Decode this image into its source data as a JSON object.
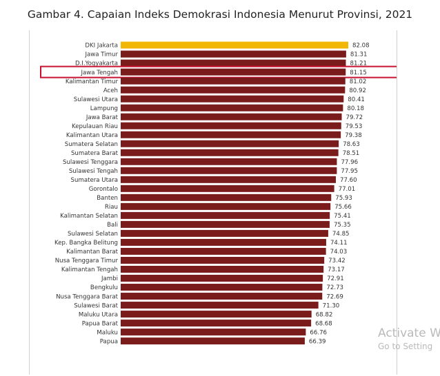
{
  "chart_data": {
    "type": "bar",
    "orientation": "horizontal",
    "title": "Gambar 4. Capaian Indeks Demokrasi Indonesia Menurut Provinsi, 2021",
    "xlabel": "",
    "ylabel": "",
    "grid": false,
    "legend": "none",
    "xlim": [
      0,
      82.08
    ],
    "categories": [
      "DKI Jakarta",
      "Jawa Timur",
      "D.I.Yogyakarta",
      "Jawa Tengah",
      "Kalimantan Timur",
      "Aceh",
      "Sulawesi Utara",
      "Lampung",
      "Jawa Barat",
      "Kepulauan Riau",
      "Kalimantan Utara",
      "Sumatera Selatan",
      "Sumatera Barat",
      "Sulawesi Tenggara",
      "Sulawesi Tengah",
      "Sumatera Utara",
      "Gorontalo",
      "Banten",
      "Riau",
      "Kalimantan Selatan",
      "Bali",
      "Sulawesi Selatan",
      "Kep. Bangka Belitung",
      "Kalimantan Barat",
      "Nusa Tenggara Timur",
      "Kalimantan Tengah",
      "Jambi",
      "Bengkulu",
      "Nusa Tenggara Barat",
      "Sulawesi Barat",
      "Maluku Utara",
      "Papua Barat",
      "Maluku",
      "Papua"
    ],
    "values": [
      82.08,
      81.31,
      81.21,
      81.15,
      81.02,
      80.92,
      80.41,
      80.18,
      79.72,
      79.53,
      79.38,
      78.63,
      78.51,
      77.96,
      77.95,
      77.6,
      77.01,
      75.93,
      75.66,
      75.41,
      75.35,
      74.85,
      74.11,
      74.03,
      73.42,
      73.17,
      72.91,
      72.73,
      72.69,
      71.3,
      68.82,
      68.68,
      66.76,
      66.39
    ],
    "value_labels": [
      "82.08",
      "81.31",
      "81.21",
      "81.15",
      "81.02",
      "80.92",
      "80.41",
      "80.18",
      "79.72",
      "79.53",
      "79.38",
      "78.63",
      "78.51",
      "77.96",
      "77.95",
      "77.60",
      "77.01",
      "75.93",
      "75.66",
      "75.41",
      "75.35",
      "74.85",
      "74.11",
      "74.03",
      "73.42",
      "73.17",
      "72.91",
      "72.73",
      "72.69",
      "71.30",
      "68.82",
      "68.68",
      "66.76",
      "66.39"
    ],
    "highlighted_category": "DKI Jakarta",
    "outlined_category": "Jawa Tengah",
    "colors": {
      "bar": "#7b1c1c",
      "highlight_bar": "#f2b705",
      "outline_box": "#c8102e",
      "label_text": "#333333"
    }
  },
  "watermark": {
    "line1": "Activate W",
    "line2": "Go to Setting"
  }
}
